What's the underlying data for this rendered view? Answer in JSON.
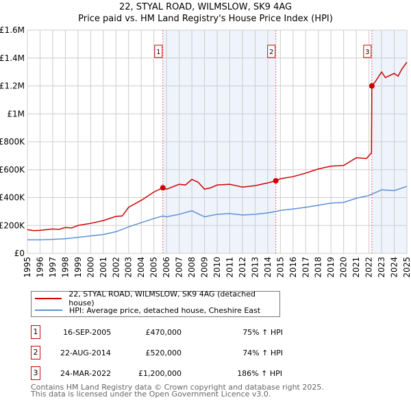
{
  "chart_data": {
    "type": "line",
    "title": "22, STYAL ROAD, WILMSLOW, SK9 4AG",
    "subtitle": "Price paid vs. HM Land Registry's House Price Index (HPI)",
    "xlim": [
      1995,
      2025
    ],
    "ylim": [
      0,
      1600000
    ],
    "x_ticks": [
      "1995",
      "1996",
      "1997",
      "1998",
      "1999",
      "2000",
      "2001",
      "2002",
      "2003",
      "2004",
      "2005",
      "2006",
      "2007",
      "2008",
      "2009",
      "2010",
      "2011",
      "2012",
      "2013",
      "2014",
      "2015",
      "2016",
      "2017",
      "2018",
      "2019",
      "2020",
      "2021",
      "2022",
      "2023",
      "2024",
      "2025"
    ],
    "y_ticks": [
      {
        "v": 0,
        "label": "£0"
      },
      {
        "v": 200000,
        "label": "£200K"
      },
      {
        "v": 400000,
        "label": "£400K"
      },
      {
        "v": 600000,
        "label": "£600K"
      },
      {
        "v": 800000,
        "label": "£800K"
      },
      {
        "v": 1000000,
        "label": "£1M"
      },
      {
        "v": 1200000,
        "label": "£1.2M"
      },
      {
        "v": 1400000,
        "label": "£1.4M"
      },
      {
        "v": 1600000,
        "label": "£1.6M"
      }
    ],
    "grid": true,
    "series": [
      {
        "name": "22, STYAL ROAD, WILMSLOW, SK9 4AG (detached house)",
        "color": "#cc0000",
        "x": [
          1995,
          1995.5,
          1996,
          1997,
          1997.5,
          1998,
          1998.5,
          1999,
          2000,
          2001,
          2002,
          2002.5,
          2003,
          2004,
          2005,
          2005.71,
          2006,
          2007,
          2007.5,
          2008,
          2008.5,
          2009,
          2009.5,
          2010,
          2011,
          2011.5,
          2012,
          2013,
          2014,
          2014.64,
          2015,
          2016,
          2017,
          2018,
          2019,
          2020,
          2021,
          2021.8,
          2022.2,
          2022.23,
          2022.5,
          2023,
          2023.3,
          2024,
          2024.3,
          2024.6,
          2025
        ],
        "y": [
          170000,
          163000,
          165000,
          175000,
          172000,
          185000,
          182000,
          200000,
          215000,
          235000,
          265000,
          268000,
          330000,
          380000,
          440000,
          470000,
          460000,
          495000,
          490000,
          530000,
          510000,
          460000,
          470000,
          490000,
          495000,
          485000,
          475000,
          485000,
          505000,
          520000,
          535000,
          550000,
          575000,
          605000,
          625000,
          630000,
          685000,
          680000,
          720000,
          1200000,
          1230000,
          1300000,
          1260000,
          1290000,
          1270000,
          1320000,
          1370000
        ]
      },
      {
        "name": "HPI: Average price, detached house, Cheshire East",
        "color": "#5b8fd6",
        "x": [
          1995,
          1996,
          1997,
          1998,
          1999,
          2000,
          2001,
          2002,
          2003,
          2004,
          2005,
          2005.71,
          2006,
          2007,
          2008,
          2009,
          2010,
          2011,
          2012,
          2013,
          2014,
          2014.64,
          2015,
          2016,
          2017,
          2018,
          2019,
          2020,
          2021,
          2022,
          2023,
          2024,
          2025
        ],
        "y": [
          97000,
          97000,
          100000,
          105000,
          115000,
          125000,
          135000,
          155000,
          190000,
          220000,
          250000,
          268000,
          262000,
          280000,
          305000,
          262000,
          280000,
          285000,
          275000,
          280000,
          290000,
          300000,
          308000,
          318000,
          330000,
          345000,
          360000,
          365000,
          395000,
          415000,
          455000,
          450000,
          480000
        ]
      }
    ],
    "sales": [
      {
        "id": "1",
        "x": 2005.71,
        "y": 470000,
        "date": "16-SEP-2005",
        "price": "£470,000",
        "hpi": "75% ↑ HPI"
      },
      {
        "id": "2",
        "x": 2014.64,
        "y": 520000,
        "date": "22-AUG-2014",
        "price": "£520,000",
        "hpi": "74% ↑ HPI"
      },
      {
        "id": "3",
        "x": 2022.23,
        "y": 1200000,
        "date": "24-MAR-2022",
        "price": "£1,200,000",
        "hpi": "186% ↑ HPI"
      }
    ],
    "legend_placement": "below"
  },
  "footer": {
    "line1": "Contains HM Land Registry data © Crown copyright and database right 2025.",
    "line2": "This data is licensed under the Open Government Licence v3.0."
  }
}
